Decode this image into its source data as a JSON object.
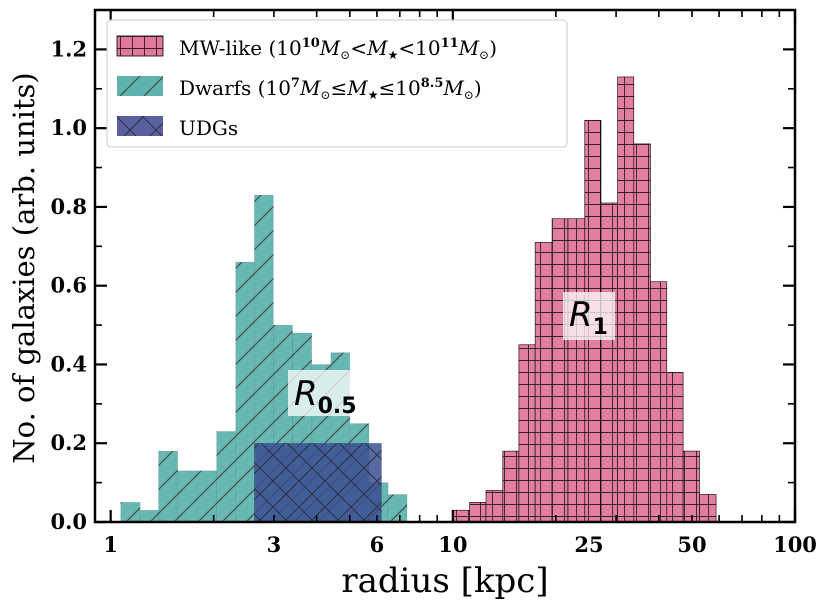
{
  "chart_data": {
    "type": "bar",
    "title": "",
    "xlabel": "radius [kpc]",
    "ylabel": "No. of galaxies (arb. units)",
    "xscale": "log",
    "xlim": [
      0.9,
      100
    ],
    "ylim": [
      0,
      1.3
    ],
    "xticks": [
      1,
      3,
      6,
      10,
      25,
      50,
      100
    ],
    "yticks": [
      0.0,
      0.2,
      0.4,
      0.6,
      0.8,
      1.0,
      1.2
    ],
    "legend_position": "top-left",
    "colors": {
      "mw": "#e0789a",
      "dwarfs": "#5fb3ae",
      "udgs": "#3a4f8f",
      "hatch": "#000000"
    },
    "series": [
      {
        "name": "MW-like",
        "legend_label": "MW-like",
        "hatch": "grid",
        "edges": [
          10.0,
          11.2,
          12.5,
          14.0,
          15.6,
          17.4,
          19.5,
          21.7,
          24.3,
          27.1,
          30.3,
          33.8,
          37.8,
          42.2,
          47.1,
          52.6,
          58.8
        ],
        "values": [
          0.03,
          0.05,
          0.08,
          0.18,
          0.45,
          0.71,
          0.77,
          0.77,
          1.02,
          0.81,
          1.13,
          0.96,
          0.61,
          0.38,
          0.18,
          0.07
        ]
      },
      {
        "name": "Dwarfs",
        "legend_label": "Dwarfs",
        "hatch": "diagonal",
        "edges": [
          1.07,
          1.22,
          1.38,
          1.57,
          1.79,
          2.04,
          2.32,
          2.63,
          2.99,
          3.4,
          3.87,
          4.4,
          5.0,
          5.69,
          6.47,
          7.35,
          8.36,
          9.51,
          10.81
        ],
        "values": [
          0.05,
          0.03,
          0.18,
          0.13,
          0.13,
          0.23,
          0.66,
          0.83,
          0.5,
          0.48,
          0.4,
          0.43,
          0.25,
          0.1,
          0.07,
          0.0,
          0.0,
          0.0
        ]
      },
      {
        "name": "UDGs",
        "legend_label": "UDGs",
        "hatch": "cross",
        "edges": [
          2.63,
          6.19
        ],
        "values": [
          0.2
        ]
      }
    ],
    "annotations": [
      {
        "label": "R",
        "subscript": "0.5",
        "x": 4.2,
        "y": 0.34
      },
      {
        "label": "R",
        "subscript": "1",
        "x": 25.5,
        "y": 0.53
      }
    ]
  },
  "legend": {
    "mw": {
      "name": "MW-like (",
      "l": "10",
      "e1": "10",
      "m1": "M",
      "lt1": "<",
      "mstar": "M",
      "lt2": "<",
      "h": "10",
      "e2": "11",
      "m2": "M",
      "close": ")"
    },
    "dwarfs": {
      "name": "Dwarfs (",
      "l": "10",
      "e1": "7",
      "m1": "M",
      "le1": "≤",
      "mstar": "M",
      "le2": "≤",
      "h": "10",
      "e2": "8.5",
      "m2": "M",
      "close": ")"
    },
    "udgs": {
      "name": "UDGs"
    }
  }
}
